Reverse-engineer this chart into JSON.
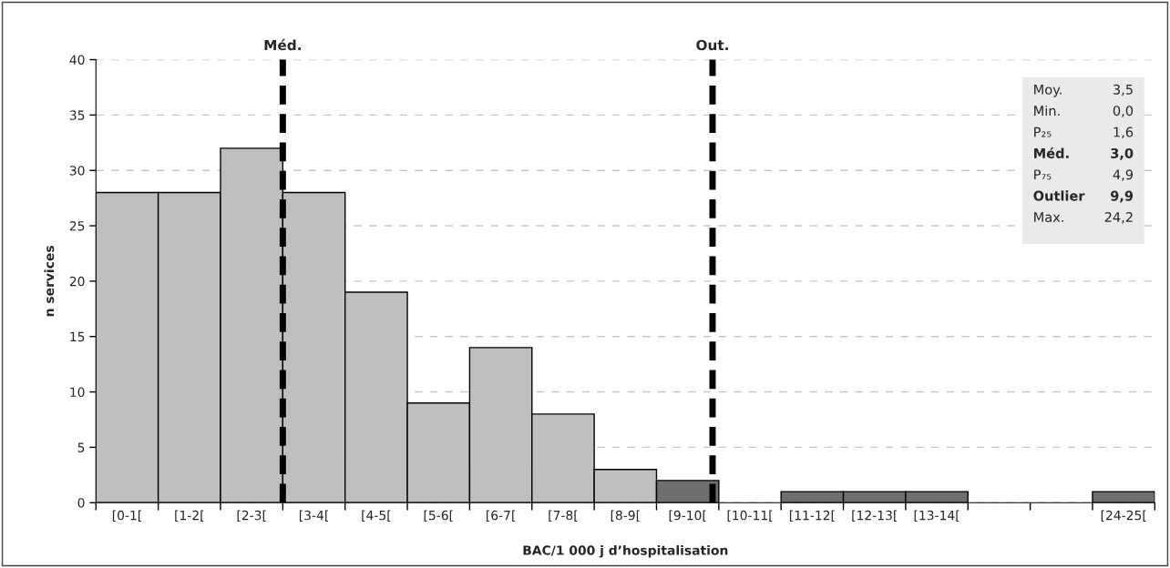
{
  "chart_data": {
    "type": "bar",
    "xlabel": "BAC/1 000 j d’hospitalisation",
    "ylabel": "n services",
    "categories": [
      "[0-1[",
      "[1-2[",
      "[2-3[",
      "[3-4[",
      "[4-5[",
      "[5-6[",
      "[6-7[",
      "[7-8[",
      "[8-9[",
      "[9-10[",
      "[10-11[",
      "[11-12[",
      "[12-13[",
      "[13-14[",
      null,
      null,
      "[24-25["
    ],
    "values": [
      28,
      28,
      32,
      28,
      19,
      9,
      14,
      8,
      3,
      2,
      0,
      1,
      1,
      1,
      0,
      0,
      1
    ],
    "colors": [
      "#bfbfbf",
      "#bfbfbf",
      "#bfbfbf",
      "#bfbfbf",
      "#bfbfbf",
      "#bfbfbf",
      "#bfbfbf",
      "#bfbfbf",
      "#bfbfbf",
      "#6f6f6f",
      "#6f6f6f",
      "#6f6f6f",
      "#6f6f6f",
      "#6f6f6f",
      "#6f6f6f",
      "#6f6f6f",
      "#6f6f6f"
    ],
    "ylim": [
      0,
      40
    ],
    "yticks": [
      0,
      5,
      10,
      15,
      20,
      25,
      30,
      35,
      40
    ],
    "grid": "y",
    "annotations": [
      "Méd.",
      "Out.",
      "Moy.",
      "3,5",
      "Min.",
      "0,0",
      "P₂₅",
      "1,6",
      "Méd.",
      "3,0",
      "P₇₅",
      "4,9",
      "Outlier",
      "9,9",
      "Max.",
      "24,2"
    ]
  }
}
